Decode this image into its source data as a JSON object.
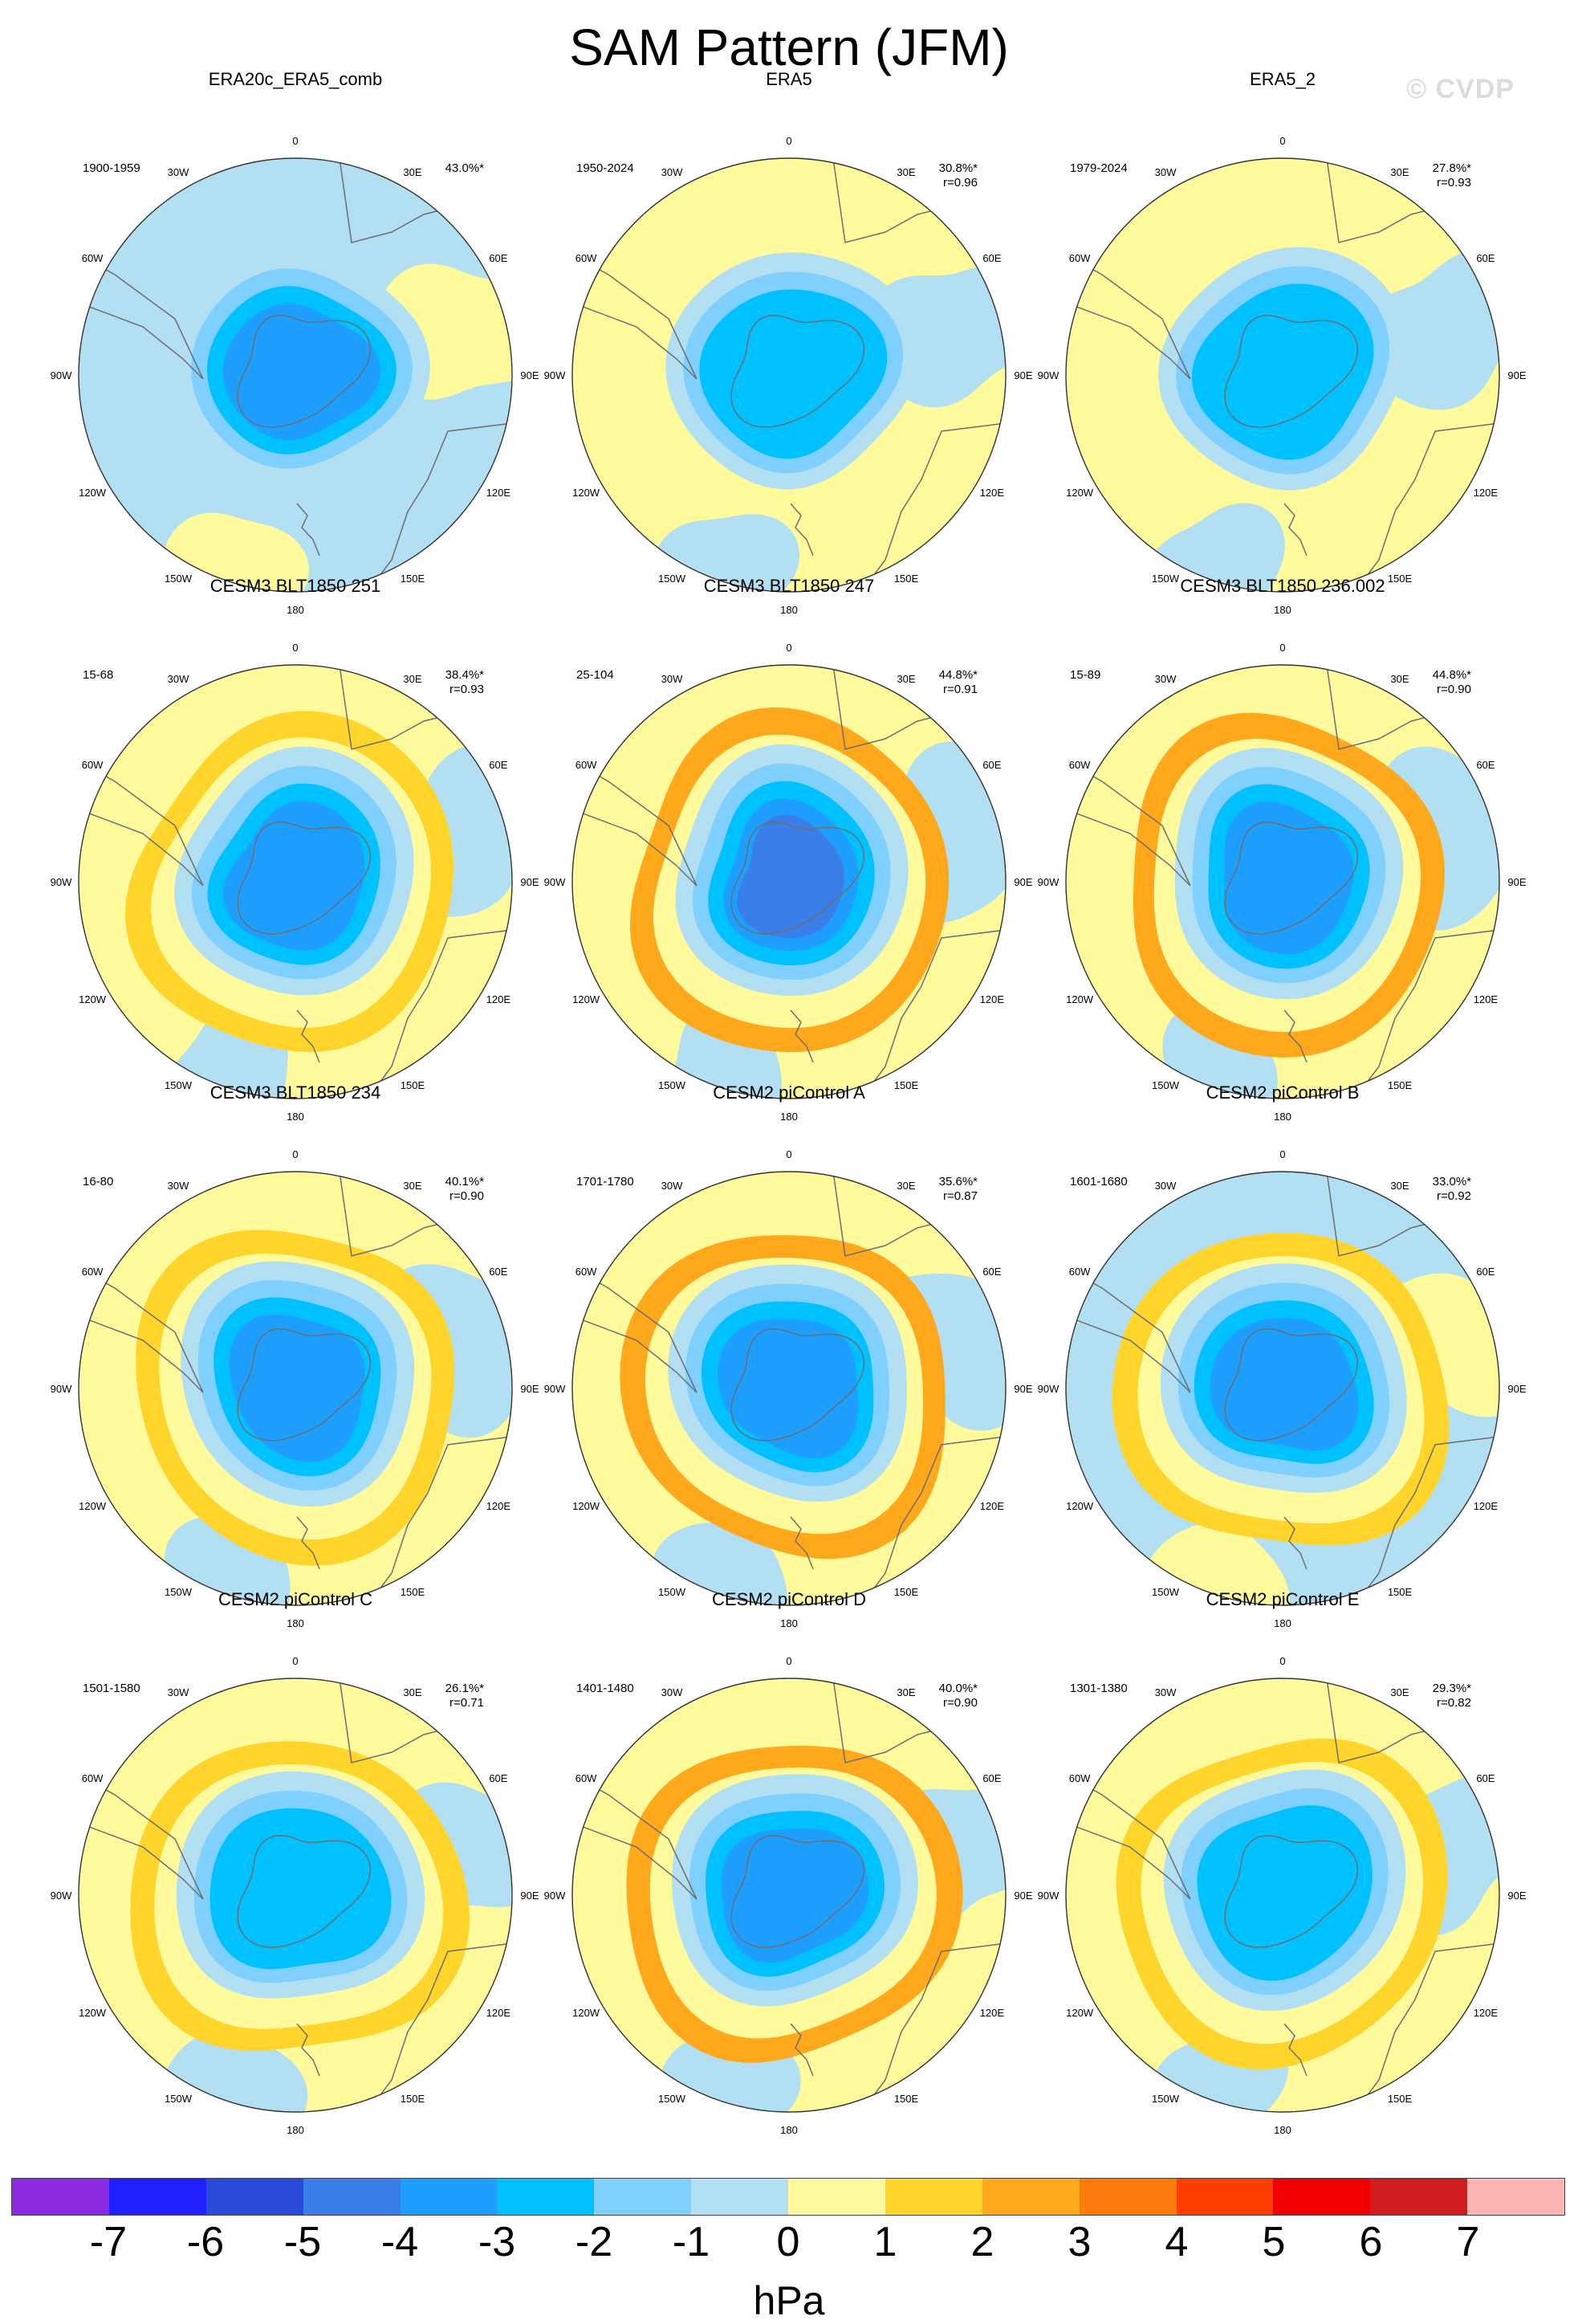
{
  "title": "SAM Pattern (JFM)",
  "watermark": "© CVDP",
  "colors": {
    "levels": [
      "#8a2be2",
      "#1f1fff",
      "#2a4bd7",
      "#3a7fe8",
      "#1e9fff",
      "#00c1ff",
      "#7fcfff",
      "#b3dff2",
      "#fffa9c",
      "#ffd52b",
      "#ffa81c",
      "#ff7a0d",
      "#ff3d00",
      "#f20000",
      "#d01e1e",
      "#ffb4b4"
    ],
    "land_line": "#6e6e6e"
  },
  "colorbar": {
    "ticks": [
      "-7",
      "-6",
      "-5",
      "-4",
      "-3",
      "-2",
      "-1",
      "0",
      "1",
      "2",
      "3",
      "4",
      "5",
      "6",
      "7"
    ],
    "units": "hPa"
  },
  "longitude_labels": [
    "0",
    "30E",
    "60E",
    "90E",
    "120E",
    "150E",
    "180",
    "150W",
    "120W",
    "90W",
    "60W",
    "30W"
  ],
  "panels": [
    {
      "title": "ERA20c_ERA5_comb",
      "period": "1900-1959",
      "pct": "43.0%*",
      "r": "",
      "bg": "#b3dff2",
      "ring": null,
      "inner": 3,
      "n": 0
    },
    {
      "title": "ERA5",
      "period": "1950-2024",
      "pct": "30.8%*",
      "r": "r=0.96",
      "bg": "#fffa9c",
      "ring": null,
      "inner": 2,
      "n": 1
    },
    {
      "title": "ERA5_2",
      "period": "1979-2024",
      "pct": "27.8%*",
      "r": "r=0.93",
      "bg": "#fffa9c",
      "ring": null,
      "inner": 2,
      "n": 2
    },
    {
      "title": "CESM3 BLT1850 251",
      "period": "15-68",
      "pct": "38.4%*",
      "r": "r=0.93",
      "bg": "#fffa9c",
      "ring": 1,
      "inner": 3,
      "n": 3
    },
    {
      "title": "CESM3 BLT1850 247",
      "period": "25-104",
      "pct": "44.8%*",
      "r": "r=0.91",
      "bg": "#fffa9c",
      "ring": 2,
      "inner": 4,
      "n": 4
    },
    {
      "title": "CESM3 BLT1850 236.002",
      "period": "15-89",
      "pct": "44.8%*",
      "r": "r=0.90",
      "bg": "#fffa9c",
      "ring": 2,
      "inner": 3,
      "n": 5
    },
    {
      "title": "CESM3 BLT1850 234",
      "period": "16-80",
      "pct": "40.1%*",
      "r": "r=0.90",
      "bg": "#fffa9c",
      "ring": 1,
      "inner": 3,
      "n": 6
    },
    {
      "title": "CESM2 piControl A",
      "period": "1701-1780",
      "pct": "35.6%*",
      "r": "r=0.87",
      "bg": "#fffa9c",
      "ring": 2,
      "inner": 3,
      "n": 7
    },
    {
      "title": "CESM2 piControl B",
      "period": "1601-1680",
      "pct": "33.0%*",
      "r": "r=0.92",
      "bg": "#b3dff2",
      "ring": 1,
      "inner": 3,
      "n": 8
    },
    {
      "title": "CESM2 piControl C",
      "period": "1501-1580",
      "pct": "26.1%*",
      "r": "r=0.71",
      "bg": "#fffa9c",
      "ring": 1,
      "inner": 2,
      "n": 9
    },
    {
      "title": "CESM2 piControl D",
      "period": "1401-1480",
      "pct": "40.0%*",
      "r": "r=0.90",
      "bg": "#fffa9c",
      "ring": 2,
      "inner": 3,
      "n": 10
    },
    {
      "title": "CESM2 piControl E",
      "period": "1301-1380",
      "pct": "29.3%*",
      "r": "r=0.82",
      "bg": "#fffa9c",
      "ring": 1,
      "inner": 2,
      "n": 11
    }
  ]
}
